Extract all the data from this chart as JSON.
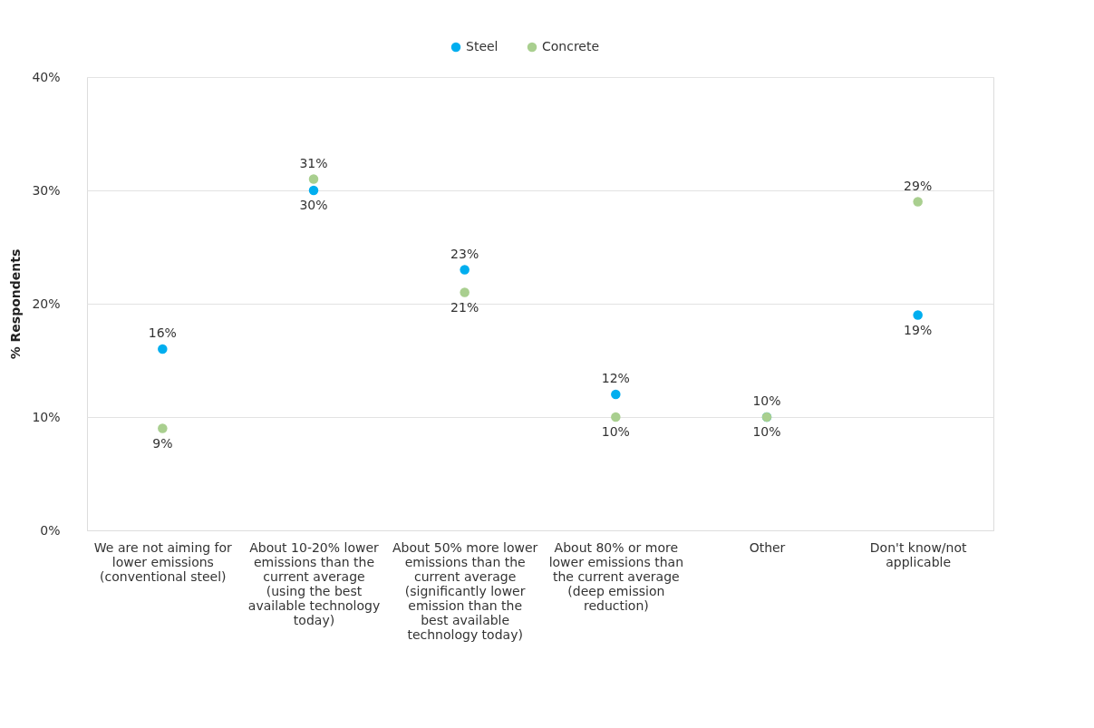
{
  "chart_data": {
    "type": "scatter",
    "ylabel": "% Respondents",
    "categories": [
      "We are not aiming for lower emissions (conventional steel)",
      "About 10-20% lower emissions than the current average (using the best available technology today)",
      "About 50% more lower emissions than the current average (significantly lower emission than the best available technology today)",
      "About 80% or more lower emissions than the current average (deep emission reduction)",
      "Other",
      "Don't know/not applicable"
    ],
    "series": [
      {
        "name": "Steel",
        "color": "#00aeef",
        "values": [
          16,
          30,
          23,
          12,
          10,
          19
        ],
        "value_labels": [
          "16%",
          "30%",
          "23%",
          "12%",
          "10%",
          "19%"
        ]
      },
      {
        "name": "Concrete",
        "color": "#a9cf8f",
        "values": [
          9,
          31,
          21,
          10,
          10,
          29
        ],
        "value_labels": [
          "9%",
          "31%",
          "21%",
          "10%",
          "10%",
          "29%"
        ]
      }
    ],
    "ylim": [
      0,
      40
    ],
    "yticks": [
      {
        "value": 0,
        "label": "0%"
      },
      {
        "value": 10,
        "label": "10%"
      },
      {
        "value": 20,
        "label": "20%"
      },
      {
        "value": 30,
        "label": "30%"
      },
      {
        "value": 40,
        "label": "40%"
      }
    ],
    "grid": "y",
    "legend": "top",
    "marker": "circle"
  }
}
